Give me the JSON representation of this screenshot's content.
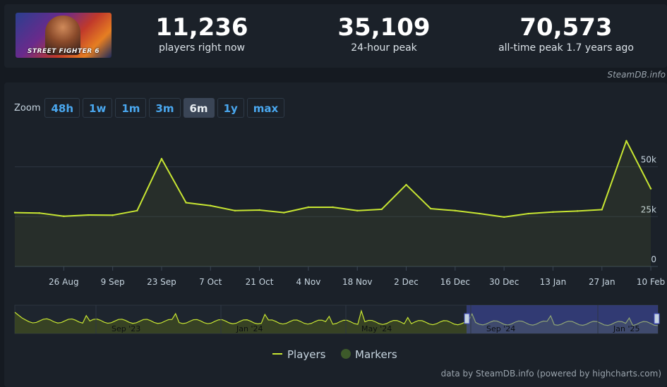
{
  "game": {
    "cover_label": "STREET FIGHTER 6",
    "cover_icon": "game-cover-art"
  },
  "stats": [
    {
      "value": "11,236",
      "label": "players right now"
    },
    {
      "value": "35,109",
      "label": "24-hour peak"
    },
    {
      "value": "70,573",
      "label": "all-time peak 1.7 years ago"
    }
  ],
  "credit": "SteamDB.info",
  "zoom": {
    "label": "Zoom",
    "options": [
      "48h",
      "1w",
      "1m",
      "3m",
      "6m",
      "1y",
      "max"
    ],
    "active": "6m"
  },
  "legend": [
    {
      "label": "Players",
      "color": "#c8e632"
    },
    {
      "label": "Markers",
      "color": "#3d5a2a"
    }
  ],
  "footer": "data by SteamDB.info (powered by highcharts.com)",
  "chart_data": {
    "type": "line",
    "title": "",
    "xlabel": "",
    "ylabel": "",
    "ylim": [
      0,
      70000
    ],
    "yticks": [
      0,
      25000,
      50000
    ],
    "ytick_labels": [
      "0",
      "25k",
      "50k"
    ],
    "xticks": [
      "26 Aug",
      "9 Sep",
      "23 Sep",
      "7 Oct",
      "21 Oct",
      "4 Nov",
      "18 Nov",
      "2 Dec",
      "16 Dec",
      "30 Dec",
      "13 Jan",
      "27 Jan",
      "10 Feb"
    ],
    "grid": true,
    "legend_position": "bottom-center",
    "series": [
      {
        "name": "Players",
        "color": "#c8e632",
        "x": [
          "2024-08-12",
          "2024-08-19",
          "2024-08-26",
          "2024-09-02",
          "2024-09-09",
          "2024-09-16",
          "2024-09-23",
          "2024-09-30",
          "2024-10-07",
          "2024-10-14",
          "2024-10-21",
          "2024-10-28",
          "2024-11-04",
          "2024-11-11",
          "2024-11-18",
          "2024-11-25",
          "2024-12-02",
          "2024-12-09",
          "2024-12-16",
          "2024-12-23",
          "2024-12-30",
          "2025-01-06",
          "2025-01-13",
          "2025-01-20",
          "2025-01-27",
          "2025-02-03",
          "2025-02-10"
        ],
        "values": [
          27000,
          26800,
          25200,
          25800,
          25700,
          28000,
          54000,
          32000,
          30500,
          28000,
          28300,
          27000,
          29700,
          29700,
          28000,
          28700,
          41000,
          29000,
          28000,
          26500,
          24800,
          26500,
          27300,
          27800,
          28500,
          63000,
          39000
        ]
      }
    ],
    "navigator": {
      "labels": [
        "Sep '23",
        "Jan '24",
        "May '24",
        "Sep '24",
        "Jan '25"
      ],
      "selected_range": [
        "Aug '24",
        "Feb '25"
      ]
    }
  }
}
